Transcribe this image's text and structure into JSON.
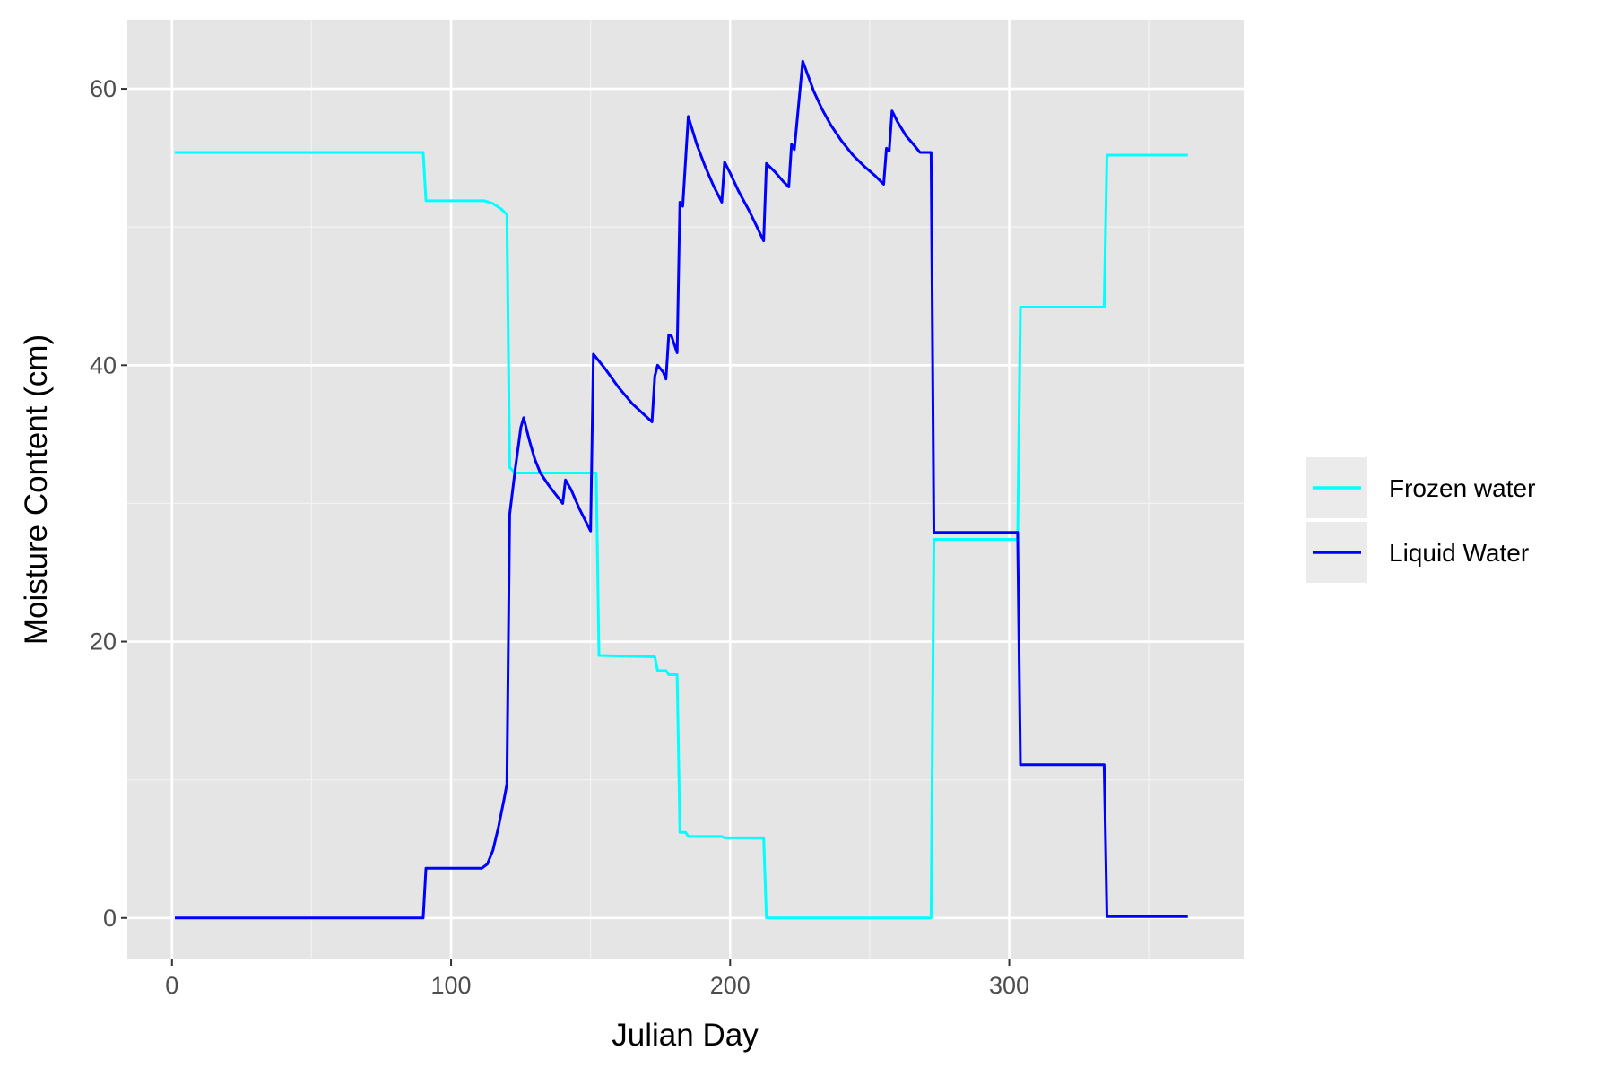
{
  "chart_data": {
    "type": "line",
    "title": "",
    "xlabel": "Julian Day",
    "ylabel": "Moisture Content (cm)",
    "xlim": [
      -16,
      384
    ],
    "ylim": [
      -3,
      65
    ],
    "x_ticks": [
      0,
      100,
      200,
      300
    ],
    "y_ticks": [
      0,
      20,
      40,
      60
    ],
    "grid": true,
    "background": "#e5e5e5",
    "legend_position": "right",
    "series": [
      {
        "name": "Frozen water",
        "color": "#00ffff",
        "points": [
          [
            1,
            55.4
          ],
          [
            90,
            55.4
          ],
          [
            91,
            51.9
          ],
          [
            112,
            51.9
          ],
          [
            115,
            51.7
          ],
          [
            118,
            51.3
          ],
          [
            120,
            50.9
          ],
          [
            121,
            32.6
          ],
          [
            123,
            32.2
          ],
          [
            152,
            32.2
          ],
          [
            153,
            19.0
          ],
          [
            173,
            18.9
          ],
          [
            174,
            17.9
          ],
          [
            177,
            17.9
          ],
          [
            178,
            17.6
          ],
          [
            181,
            17.6
          ],
          [
            182,
            6.2
          ],
          [
            184,
            6.2
          ],
          [
            185,
            5.9
          ],
          [
            197,
            5.9
          ],
          [
            198,
            5.8
          ],
          [
            212,
            5.8
          ],
          [
            213,
            0.0
          ],
          [
            272,
            0.0
          ],
          [
            273,
            27.4
          ],
          [
            303,
            27.4
          ],
          [
            304,
            44.2
          ],
          [
            334,
            44.2
          ],
          [
            335,
            55.2
          ],
          [
            364,
            55.2
          ]
        ]
      },
      {
        "name": "Liquid Water",
        "color": "#0000ff",
        "points": [
          [
            1,
            0.0
          ],
          [
            90,
            0.0
          ],
          [
            91,
            3.6
          ],
          [
            111,
            3.6
          ],
          [
            113,
            3.9
          ],
          [
            115,
            4.9
          ],
          [
            117,
            6.6
          ],
          [
            119,
            8.6
          ],
          [
            120,
            9.7
          ],
          [
            121,
            29.2
          ],
          [
            123,
            32.5
          ],
          [
            125,
            35.5
          ],
          [
            126,
            36.2
          ],
          [
            128,
            34.6
          ],
          [
            130,
            33.2
          ],
          [
            132,
            32.2
          ],
          [
            135,
            31.3
          ],
          [
            140,
            30.0
          ],
          [
            141,
            31.7
          ],
          [
            143,
            31.0
          ],
          [
            146,
            29.6
          ],
          [
            150,
            28.0
          ],
          [
            151,
            40.8
          ],
          [
            155,
            39.8
          ],
          [
            160,
            38.4
          ],
          [
            165,
            37.2
          ],
          [
            172,
            35.9
          ],
          [
            173,
            39.2
          ],
          [
            174,
            40.0
          ],
          [
            176,
            39.5
          ],
          [
            177,
            39.0
          ],
          [
            178,
            42.2
          ],
          [
            179,
            42.1
          ],
          [
            181,
            40.9
          ],
          [
            182,
            51.8
          ],
          [
            183,
            51.5
          ],
          [
            185,
            58.0
          ],
          [
            188,
            56.0
          ],
          [
            191,
            54.4
          ],
          [
            194,
            53.0
          ],
          [
            197,
            51.8
          ],
          [
            198,
            54.7
          ],
          [
            200,
            53.9
          ],
          [
            203,
            52.6
          ],
          [
            207,
            51.1
          ],
          [
            212,
            49.0
          ],
          [
            213,
            54.6
          ],
          [
            216,
            54.0
          ],
          [
            219,
            53.3
          ],
          [
            221,
            52.9
          ],
          [
            222,
            56.0
          ],
          [
            223,
            55.6
          ],
          [
            226,
            62.0
          ],
          [
            228,
            60.9
          ],
          [
            230,
            59.8
          ],
          [
            233,
            58.5
          ],
          [
            236,
            57.4
          ],
          [
            240,
            56.2
          ],
          [
            244,
            55.2
          ],
          [
            248,
            54.4
          ],
          [
            252,
            53.7
          ],
          [
            255,
            53.1
          ],
          [
            256,
            55.7
          ],
          [
            257,
            55.5
          ],
          [
            258,
            58.4
          ],
          [
            260,
            57.6
          ],
          [
            263,
            56.6
          ],
          [
            266,
            55.9
          ],
          [
            268,
            55.4
          ],
          [
            272,
            55.4
          ],
          [
            273,
            27.9
          ],
          [
            303,
            27.9
          ],
          [
            304,
            11.1
          ],
          [
            334,
            11.1
          ],
          [
            335,
            0.1
          ],
          [
            364,
            0.1
          ]
        ]
      }
    ]
  }
}
